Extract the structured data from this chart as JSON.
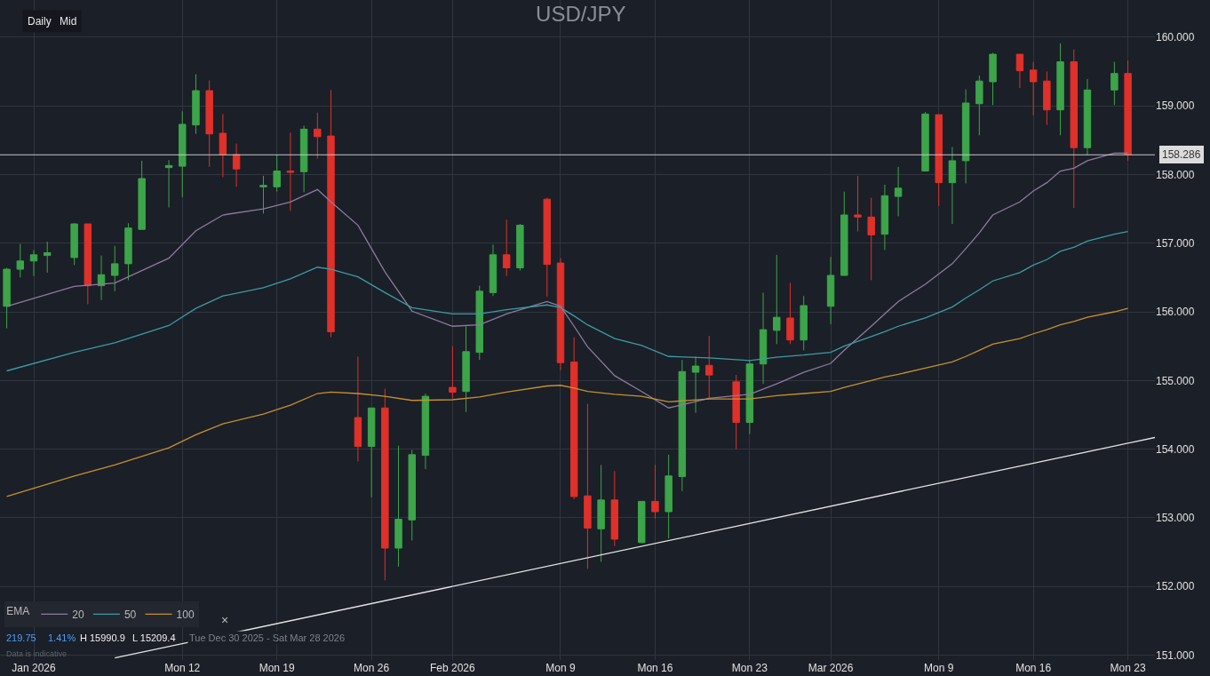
{
  "chart_data": {
    "type": "candlestick",
    "title": "USD/JPY",
    "legend_title": "EMA",
    "legend": "bottom left",
    "grid": true,
    "annotations": [
      "Daily",
      "Mid",
      "×",
      "219.75",
      "1.41%",
      "H 15990.9",
      "L 15209.4",
      "Tue Dec 30 2025 - Sat Mar 28 2026",
      "Data is indicative"
    ],
    "x": [
      "2025-12-30",
      "2025-12-31",
      "2026-01-01",
      "2026-01-02",
      "2026-01-04",
      "2026-01-05",
      "2026-01-06",
      "2026-01-07",
      "2026-01-08",
      "2026-01-09",
      "2026-01-11",
      "2026-01-12",
      "2026-01-13",
      "2026-01-14",
      "2026-01-15",
      "2026-01-16",
      "2026-01-18",
      "2026-01-19",
      "2026-01-20",
      "2026-01-21",
      "2026-01-22",
      "2026-01-23",
      "2026-01-25",
      "2026-01-26",
      "2026-01-27",
      "2026-01-28",
      "2026-01-29",
      "2026-01-30",
      "2026-02-01",
      "2026-02-02",
      "2026-02-03",
      "2026-02-04",
      "2026-02-05",
      "2026-02-06",
      "2026-02-08",
      "2026-02-09",
      "2026-02-10",
      "2026-02-11",
      "2026-02-12",
      "2026-02-13",
      "2026-02-15",
      "2026-02-16",
      "2026-02-17",
      "2026-02-18",
      "2026-02-19",
      "2026-02-20",
      "2026-02-22",
      "2026-02-23",
      "2026-02-24",
      "2026-02-25",
      "2026-02-26",
      "2026-02-27",
      "2026-03-01",
      "2026-03-02",
      "2026-03-03",
      "2026-03-04",
      "2026-03-05",
      "2026-03-06",
      "2026-03-08",
      "2026-03-09",
      "2026-03-10",
      "2026-03-11",
      "2026-03-12",
      "2026-03-13",
      "2026-03-15",
      "2026-03-16",
      "2026-03-17",
      "2026-03-18",
      "2026-03-19",
      "2026-03-20",
      "2026-03-22",
      "2026-03-23"
    ],
    "ohlc": [
      [
        156.08,
        156.64,
        155.76,
        156.62
      ],
      [
        156.62,
        156.99,
        156.5,
        156.74
      ],
      [
        156.74,
        156.9,
        156.52,
        156.83
      ],
      [
        156.82,
        157.02,
        156.57,
        156.86
      ],
      [
        156.79,
        157.29,
        156.68,
        157.28
      ],
      [
        157.28,
        157.28,
        156.11,
        156.38
      ],
      [
        156.38,
        156.82,
        156.17,
        156.54
      ],
      [
        156.53,
        156.96,
        156.3,
        156.7
      ],
      [
        156.7,
        157.29,
        156.46,
        157.22
      ],
      [
        157.2,
        158.2,
        157.2,
        157.94
      ],
      [
        158.1,
        158.21,
        157.52,
        158.13
      ],
      [
        158.12,
        158.92,
        157.67,
        158.73
      ],
      [
        158.72,
        159.46,
        158.59,
        159.22
      ],
      [
        159.22,
        159.37,
        158.11,
        158.59
      ],
      [
        158.6,
        158.88,
        157.96,
        158.29
      ],
      [
        158.29,
        158.45,
        157.82,
        158.08
      ],
      [
        157.82,
        157.98,
        157.43,
        157.84
      ],
      [
        157.82,
        158.29,
        157.75,
        158.05
      ],
      [
        158.05,
        158.61,
        157.47,
        158.03
      ],
      [
        158.04,
        158.71,
        157.74,
        158.66
      ],
      [
        158.66,
        158.9,
        158.23,
        158.55
      ],
      [
        158.56,
        159.23,
        155.63,
        155.71
      ],
      [
        154.46,
        155.35,
        153.82,
        154.04
      ],
      [
        154.04,
        154.6,
        153.3,
        154.6
      ],
      [
        154.6,
        154.88,
        152.09,
        152.56
      ],
      [
        152.56,
        154.05,
        152.29,
        152.98
      ],
      [
        152.97,
        153.99,
        152.67,
        153.92
      ],
      [
        153.91,
        154.81,
        153.71,
        154.77
      ],
      [
        154.9,
        155.5,
        154.74,
        154.83
      ],
      [
        154.84,
        155.79,
        154.54,
        155.42
      ],
      [
        155.41,
        156.38,
        155.3,
        156.3
      ],
      [
        156.28,
        156.98,
        156.23,
        156.83
      ],
      [
        156.83,
        157.34,
        156.52,
        156.64
      ],
      [
        156.64,
        157.28,
        156.6,
        157.26
      ],
      [
        157.64,
        157.66,
        156.22,
        156.69
      ],
      [
        156.71,
        156.78,
        155.15,
        155.26
      ],
      [
        155.27,
        155.63,
        153.27,
        153.31
      ],
      [
        153.32,
        154.66,
        152.26,
        152.85
      ],
      [
        152.84,
        153.77,
        152.36,
        153.26
      ],
      [
        153.26,
        153.68,
        152.59,
        152.69
      ],
      [
        152.64,
        153.24,
        152.63,
        153.24
      ],
      [
        153.24,
        153.77,
        152.99,
        153.09
      ],
      [
        153.09,
        153.92,
        152.7,
        153.61
      ],
      [
        153.6,
        155.3,
        153.39,
        155.13
      ],
      [
        155.12,
        155.35,
        154.53,
        155.21
      ],
      [
        155.22,
        155.65,
        154.73,
        155.08
      ],
      [
        154.98,
        155.08,
        154.0,
        154.39
      ],
      [
        154.39,
        155.3,
        154.22,
        155.24
      ],
      [
        155.24,
        156.28,
        154.95,
        155.74
      ],
      [
        155.73,
        156.83,
        155.53,
        155.92
      ],
      [
        155.91,
        156.42,
        155.53,
        155.59
      ],
      [
        155.59,
        156.23,
        155.44,
        156.09
      ],
      [
        156.08,
        156.8,
        155.82,
        156.53
      ],
      [
        156.53,
        157.75,
        156.53,
        157.41
      ],
      [
        157.41,
        157.98,
        157.17,
        157.38
      ],
      [
        157.38,
        157.66,
        156.46,
        157.12
      ],
      [
        157.13,
        157.85,
        156.9,
        157.69
      ],
      [
        157.68,
        158.11,
        157.39,
        157.8
      ],
      [
        158.05,
        158.91,
        158.05,
        158.88
      ],
      [
        158.87,
        158.87,
        157.54,
        157.88
      ],
      [
        157.88,
        158.4,
        157.28,
        158.2
      ],
      [
        158.2,
        159.24,
        157.87,
        159.04
      ],
      [
        159.03,
        159.44,
        158.57,
        159.36
      ],
      [
        159.35,
        159.77,
        159.01,
        159.75
      ],
      [
        159.75,
        159.75,
        159.26,
        159.51
      ],
      [
        159.52,
        159.64,
        158.86,
        159.35
      ],
      [
        159.36,
        159.5,
        158.72,
        158.94
      ],
      [
        158.94,
        159.91,
        158.57,
        159.64
      ],
      [
        159.64,
        159.82,
        157.51,
        158.39
      ],
      [
        158.39,
        159.39,
        158.28,
        159.23
      ],
      [
        159.23,
        159.64,
        159.01,
        159.47
      ],
      [
        159.47,
        159.66,
        158.2,
        158.29
      ]
    ],
    "colors": [
      "#3ca54a",
      "#3ca54a",
      "#3ca54a",
      "#3ca54a",
      "#3ca54a",
      "#e0302a",
      "#3ca54a",
      "#3ca54a",
      "#3ca54a",
      "#3ca54a",
      "#3ca54a",
      "#3ca54a",
      "#3ca54a",
      "#e0302a",
      "#e0302a",
      "#e0302a",
      "#3ca54a",
      "#3ca54a",
      "#e0302a",
      "#3ca54a",
      "#e0302a",
      "#e0302a",
      "#e0302a",
      "#3ca54a",
      "#e0302a",
      "#3ca54a",
      "#3ca54a",
      "#3ca54a",
      "#e0302a",
      "#3ca54a",
      "#3ca54a",
      "#3ca54a",
      "#e0302a",
      "#3ca54a",
      "#e0302a",
      "#e0302a",
      "#e0302a",
      "#e0302a",
      "#3ca54a",
      "#e0302a",
      "#3ca54a",
      "#e0302a",
      "#3ca54a",
      "#3ca54a",
      "#3ca54a",
      "#e0302a",
      "#e0302a",
      "#3ca54a",
      "#3ca54a",
      "#3ca54a",
      "#e0302a",
      "#3ca54a",
      "#3ca54a",
      "#3ca54a",
      "#e0302a",
      "#e0302a",
      "#3ca54a",
      "#3ca54a",
      "#3ca54a",
      "#e0302a",
      "#3ca54a",
      "#3ca54a",
      "#3ca54a",
      "#3ca54a",
      "#e0302a",
      "#e0302a",
      "#e0302a",
      "#3ca54a",
      "#e0302a",
      "#3ca54a",
      "#3ca54a",
      "#e0302a"
    ],
    "series": [
      {
        "name": "20",
        "type": "line",
        "color": "#8c7ba0",
        "x": [
          "2025-12-30",
          "2026-01-04",
          "2026-01-07",
          "2026-01-11",
          "2026-01-13",
          "2026-01-15",
          "2026-01-18",
          "2026-01-20",
          "2026-01-22",
          "2026-01-23",
          "2026-01-25",
          "2026-01-27",
          "2026-01-29",
          "2026-02-01",
          "2026-02-03",
          "2026-02-05",
          "2026-02-08",
          "2026-02-09",
          "2026-02-10",
          "2026-02-11",
          "2026-02-13",
          "2026-02-15",
          "2026-02-17",
          "2026-02-20",
          "2026-02-23",
          "2026-02-25",
          "2026-02-27",
          "2026-03-01",
          "2026-03-02",
          "2026-03-04",
          "2026-03-05",
          "2026-03-06",
          "2026-03-08",
          "2026-03-10",
          "2026-03-11",
          "2026-03-12",
          "2026-03-13",
          "2026-03-15",
          "2026-03-16",
          "2026-03-17",
          "2026-03-18",
          "2026-03-19",
          "2026-03-20",
          "2026-03-22",
          "2026-03-23"
        ],
        "values": [
          156.08,
          156.37,
          156.42,
          156.78,
          157.18,
          157.41,
          157.5,
          157.6,
          157.78,
          157.6,
          157.26,
          156.58,
          156.01,
          155.79,
          155.81,
          155.97,
          156.15,
          156.08,
          155.79,
          155.49,
          155.07,
          154.84,
          154.6,
          154.74,
          154.8,
          154.95,
          155.12,
          155.25,
          155.44,
          155.79,
          155.97,
          156.15,
          156.4,
          156.7,
          156.92,
          157.15,
          157.41,
          157.6,
          157.76,
          157.88,
          158.05,
          158.09,
          158.2,
          158.31,
          158.31
        ]
      },
      {
        "name": "50",
        "type": "line",
        "color": "#3a9ca6",
        "x": [
          "2025-12-30",
          "2026-01-04",
          "2026-01-07",
          "2026-01-11",
          "2026-01-13",
          "2026-01-15",
          "2026-01-18",
          "2026-01-20",
          "2026-01-22",
          "2026-01-23",
          "2026-01-25",
          "2026-01-27",
          "2026-01-29",
          "2026-02-01",
          "2026-02-03",
          "2026-02-05",
          "2026-02-08",
          "2026-02-09",
          "2026-02-10",
          "2026-02-11",
          "2026-02-13",
          "2026-02-15",
          "2026-02-17",
          "2026-02-20",
          "2026-02-23",
          "2026-02-25",
          "2026-02-27",
          "2026-03-01",
          "2026-03-02",
          "2026-03-04",
          "2026-03-05",
          "2026-03-06",
          "2026-03-08",
          "2026-03-10",
          "2026-03-11",
          "2026-03-12",
          "2026-03-13",
          "2026-03-15",
          "2026-03-16",
          "2026-03-17",
          "2026-03-18",
          "2026-03-19",
          "2026-03-20",
          "2026-03-22",
          "2026-03-23"
        ],
        "values": [
          155.14,
          155.41,
          155.55,
          155.8,
          156.05,
          156.23,
          156.35,
          156.48,
          156.65,
          156.62,
          156.51,
          156.28,
          156.06,
          155.97,
          155.97,
          156.03,
          156.1,
          156.06,
          155.94,
          155.81,
          155.61,
          155.51,
          155.35,
          155.33,
          155.29,
          155.34,
          155.37,
          155.41,
          155.5,
          155.64,
          155.71,
          155.79,
          155.91,
          156.07,
          156.2,
          156.32,
          156.45,
          156.57,
          156.68,
          156.76,
          156.88,
          156.94,
          157.03,
          157.13,
          157.17
        ]
      },
      {
        "name": "100",
        "type": "line",
        "color": "#c8902e",
        "x": [
          "2025-12-30",
          "2026-01-04",
          "2026-01-07",
          "2026-01-11",
          "2026-01-13",
          "2026-01-15",
          "2026-01-18",
          "2026-01-20",
          "2026-01-22",
          "2026-01-23",
          "2026-01-25",
          "2026-01-27",
          "2026-01-29",
          "2026-02-01",
          "2026-02-03",
          "2026-02-05",
          "2026-02-08",
          "2026-02-09",
          "2026-02-10",
          "2026-02-11",
          "2026-02-13",
          "2026-02-15",
          "2026-02-17",
          "2026-02-20",
          "2026-02-23",
          "2026-02-25",
          "2026-02-27",
          "2026-03-01",
          "2026-03-02",
          "2026-03-04",
          "2026-03-05",
          "2026-03-06",
          "2026-03-08",
          "2026-03-10",
          "2026-03-11",
          "2026-03-12",
          "2026-03-13",
          "2026-03-15",
          "2026-03-16",
          "2026-03-17",
          "2026-03-18",
          "2026-03-19",
          "2026-03-20",
          "2026-03-22",
          "2026-03-23"
        ],
        "values": [
          153.31,
          153.61,
          153.77,
          154.02,
          154.21,
          154.37,
          154.51,
          154.64,
          154.81,
          154.83,
          154.81,
          154.77,
          154.71,
          154.72,
          154.76,
          154.83,
          154.92,
          154.93,
          154.89,
          154.84,
          154.8,
          154.77,
          154.69,
          154.73,
          154.73,
          154.78,
          154.81,
          154.84,
          154.9,
          155.0,
          155.05,
          155.09,
          155.18,
          155.27,
          155.35,
          155.44,
          155.53,
          155.61,
          155.68,
          155.74,
          155.81,
          155.86,
          155.92,
          156.0,
          156.05
        ]
      },
      {
        "type": "line",
        "color": "#e6e6e6",
        "x": [
          "2026-01-07",
          "2026-03-25"
        ],
        "values": [
          150.96,
          154.17
        ]
      }
    ],
    "ref_lines": [
      {
        "axis": "y",
        "value": 158.286,
        "label": "158.286",
        "color": "#c8c8c8"
      }
    ],
    "xlim": [
      "2025-12-29T12:00",
      "2026-03-25"
    ],
    "xticks": [
      {
        "value": "2026-01-01",
        "label": "Jan 2026"
      },
      {
        "value": "2026-01-12",
        "label": "Mon 12"
      },
      {
        "value": "2026-01-19",
        "label": "Mon 19"
      },
      {
        "value": "2026-01-26",
        "label": "Mon 26"
      },
      {
        "value": "2026-02-01",
        "label": "Feb 2026"
      },
      {
        "value": "2026-02-09",
        "label": "Mon 9"
      },
      {
        "value": "2026-02-16",
        "label": "Mon 16"
      },
      {
        "value": "2026-02-23",
        "label": "Mon 23"
      },
      {
        "value": "2026-03-01",
        "label": "Mar 2026"
      },
      {
        "value": "2026-03-09",
        "label": "Mon 9"
      },
      {
        "value": "2026-03-16",
        "label": "Mon 16"
      },
      {
        "value": "2026-03-23",
        "label": "Mon 23"
      }
    ],
    "ylim": [
      150.93,
      160.54
    ],
    "yticks": [
      {
        "value": 151,
        "label": "151.000"
      },
      {
        "value": 152,
        "label": "152.000"
      },
      {
        "value": 153,
        "label": "153.000"
      },
      {
        "value": 154,
        "label": "154.000"
      },
      {
        "value": 155,
        "label": "155.000"
      },
      {
        "value": 156,
        "label": "156.000"
      },
      {
        "value": 157,
        "label": "157.000"
      },
      {
        "value": 158,
        "label": "158.000"
      },
      {
        "value": 159,
        "label": "159.000"
      },
      {
        "value": 160,
        "label": "160.000"
      }
    ]
  }
}
